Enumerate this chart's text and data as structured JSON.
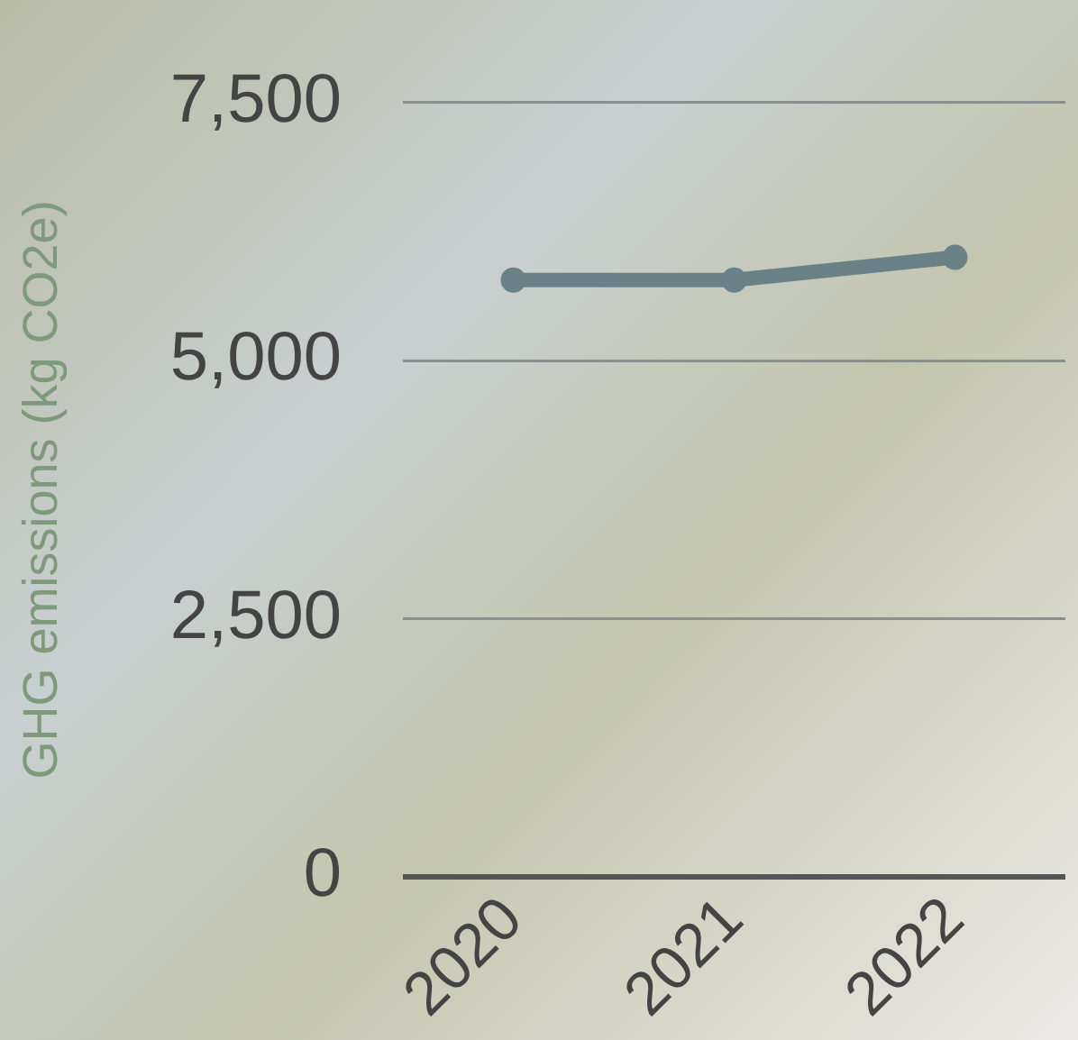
{
  "chart_data": {
    "type": "line",
    "ylabel": "GHG emissions (kg CO2e)",
    "categories": [
      "2020",
      "2021",
      "2022"
    ],
    "series": [
      {
        "color": "#6b8188",
        "values": [
          5780,
          5780,
          6000
        ]
      }
    ],
    "ylim": [
      0,
      7500
    ],
    "yticks": [
      {
        "value": 0,
        "label": "0"
      },
      {
        "value": 2500,
        "label": "2,500"
      },
      {
        "value": 5000,
        "label": "5,000"
      },
      {
        "value": 7500,
        "label": "7,500"
      }
    ],
    "grid": "y",
    "legend": false,
    "marker": "circle",
    "line_style": "solid"
  }
}
